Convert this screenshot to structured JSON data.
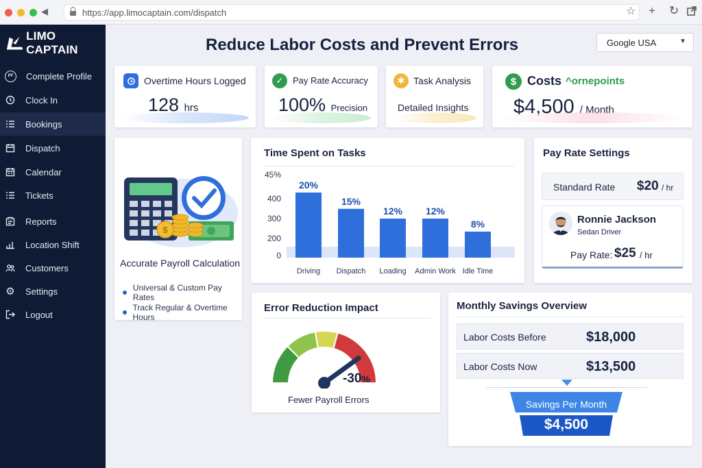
{
  "browser": {
    "url": "https://app.limocaptain.com/dispatch"
  },
  "sidebar": {
    "brand": "LIMO CAPTAIN",
    "items": [
      {
        "label": "Complete Profile",
        "icon": "profile-badge-icon",
        "badge": "PF"
      },
      {
        "label": "Clock In",
        "icon": "clock-icon"
      },
      {
        "label": "Bookings",
        "icon": "list-icon",
        "active": true
      },
      {
        "label": "Dispatch",
        "icon": "dispatch-icon"
      },
      {
        "label": "Calendar",
        "icon": "calendar-icon"
      },
      {
        "label": "Tickets",
        "icon": "ticket-icon"
      },
      {
        "label": "Reports",
        "icon": "report-icon"
      },
      {
        "label": "Location Shift",
        "icon": "location-icon"
      },
      {
        "label": "Customers",
        "icon": "customers-icon"
      },
      {
        "label": "Settings",
        "icon": "gear-icon"
      },
      {
        "label": "Logout",
        "icon": "logout-icon"
      }
    ]
  },
  "header": {
    "title": "Reduce Labor Costs and Prevent Errors",
    "region_select": "Google USA"
  },
  "stats": {
    "overtime": {
      "label": "Overtime Hours Logged",
      "value": "128",
      "unit": "hrs"
    },
    "accuracy": {
      "label": "Pay Rate Accuracy",
      "value": "100%",
      "unit": "Precision"
    },
    "tasks": {
      "label": "Task Analysis",
      "value": "Detailed Insights"
    },
    "costs": {
      "label": "Costs",
      "sublabel": "^ornepoints",
      "value": "$4,500",
      "unit": "/ Month"
    }
  },
  "payroll": {
    "title": "Accurate Payroll Calculation",
    "bullets": [
      "Universal & Custom Pay Rates",
      "Track Regular & Overtime Hours"
    ]
  },
  "chart_data": {
    "type": "bar",
    "title": "Time Spent on Tasks",
    "categories": [
      "Driving",
      "Dispatch",
      "Loading",
      "Admin Work",
      "Idle Time"
    ],
    "values": [
      20,
      15,
      12,
      12,
      8
    ],
    "data_labels": [
      "20%",
      "15%",
      "12%",
      "12%",
      "8%"
    ],
    "y_tick_labels": [
      "0",
      "200",
      "300",
      "400",
      "45%"
    ],
    "bar_color": "#2f6fdb",
    "grid": false
  },
  "pay_rate": {
    "title": "Pay Rate Settings",
    "standard_label": "Standard Rate",
    "standard_value": "$20",
    "standard_unit": "/ hr",
    "driver_name": "Ronnie Jackson",
    "driver_role": "Sedan Driver",
    "driver_rate_label": "Pay Rate:",
    "driver_rate_value": "$25",
    "driver_rate_unit": "/ hr"
  },
  "error_reduction": {
    "title": "Error Reduction Impact",
    "value": "-30",
    "value_suffix": "%",
    "caption": "Fewer Payroll Errors",
    "gauge_level": 0.8
  },
  "savings": {
    "title": "Monthly Savings Overview",
    "before_label": "Labor Costs Before",
    "before_value": "$18,000",
    "now_label": "Labor Costs Now",
    "now_value": "$13,500",
    "per_month_label": "Savings Per Month",
    "per_month_value": "$4,500"
  },
  "colors": {
    "sidebar": "#0f1a35",
    "accent": "#2f6fdb",
    "success": "#2e9d4f",
    "warning": "#f3b53a",
    "gauge_green": "#3a9e3f",
    "gauge_yellow": "#cbd34a",
    "gauge_red": "#d2393a"
  }
}
